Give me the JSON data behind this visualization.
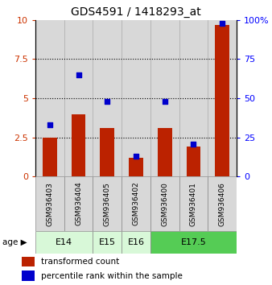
{
  "title": "GDS4591 / 1418293_at",
  "samples": [
    "GSM936403",
    "GSM936404",
    "GSM936405",
    "GSM936402",
    "GSM936400",
    "GSM936401",
    "GSM936406"
  ],
  "transformed_count": [
    2.5,
    4.0,
    3.1,
    1.2,
    3.1,
    1.9,
    9.7
  ],
  "percentile_rank": [
    33,
    65,
    48,
    13,
    48,
    21,
    98
  ],
  "age_groups": [
    {
      "label": "E14",
      "start": 0,
      "end": 2,
      "color": "#d8f8d8"
    },
    {
      "label": "E15",
      "start": 2,
      "end": 3,
      "color": "#d8f8d8"
    },
    {
      "label": "E16",
      "start": 3,
      "end": 4,
      "color": "#d8f8d8"
    },
    {
      "label": "E17.5",
      "start": 4,
      "end": 7,
      "color": "#55cc55"
    }
  ],
  "bar_color": "#bb2200",
  "dot_color": "#0000cc",
  "ylim_left": [
    0,
    10
  ],
  "ylim_right": [
    0,
    100
  ],
  "yticks_left": [
    0,
    2.5,
    5,
    7.5,
    10
  ],
  "yticks_right": [
    0,
    25,
    50,
    75,
    100
  ],
  "dotted_lines": [
    2.5,
    5.0,
    7.5
  ],
  "legend_red": "transformed count",
  "legend_blue": "percentile rank within the sample",
  "sample_bg_color": "#d8d8d8",
  "age_border_color": "#888888"
}
